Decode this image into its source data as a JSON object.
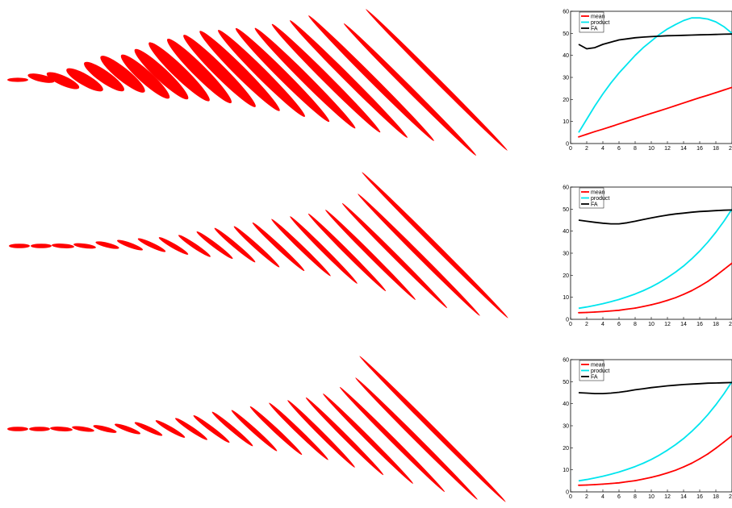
{
  "ellipse_color": "#ff0000",
  "glyph_panels": [
    {
      "count": 20,
      "rows": [
        {
          "cx": 22,
          "cy": 99,
          "rx": 13,
          "ry": 2.6,
          "angle": 0
        },
        {
          "cx": 51,
          "cy": 97,
          "rx": 17,
          "ry": 4.5,
          "angle": 13
        },
        {
          "cx": 78,
          "cy": 100,
          "rx": 22,
          "ry": 6,
          "angle": 24
        },
        {
          "cx": 105,
          "cy": 99,
          "rx": 26,
          "ry": 7,
          "angle": 30
        },
        {
          "cx": 129,
          "cy": 95,
          "rx": 30,
          "ry": 7.5,
          "angle": 35
        },
        {
          "cx": 152,
          "cy": 92,
          "rx": 35,
          "ry": 8,
          "angle": 39
        },
        {
          "cx": 180,
          "cy": 95,
          "rx": 40,
          "ry": 8,
          "angle": 42
        },
        {
          "cx": 200,
          "cy": 92,
          "rx": 45,
          "ry": 8,
          "angle": 43
        },
        {
          "cx": 222,
          "cy": 89,
          "rx": 52,
          "ry": 8,
          "angle": 44
        },
        {
          "cx": 247,
          "cy": 88,
          "rx": 56,
          "ry": 8,
          "angle": 45
        },
        {
          "cx": 272,
          "cy": 88,
          "rx": 63,
          "ry": 7.5,
          "angle": 45
        },
        {
          "cx": 297,
          "cy": 88,
          "rx": 70,
          "ry": 7,
          "angle": 45
        },
        {
          "cx": 324,
          "cy": 91,
          "rx": 76,
          "ry": 6.5,
          "angle": 45
        },
        {
          "cx": 350,
          "cy": 93,
          "rx": 82,
          "ry": 6,
          "angle": 45
        },
        {
          "cx": 378,
          "cy": 97,
          "rx": 88,
          "ry": 5.5,
          "angle": 45
        },
        {
          "cx": 404,
          "cy": 97,
          "rx": 95,
          "ry": 5,
          "angle": 45
        },
        {
          "cx": 432,
          "cy": 98,
          "rx": 103,
          "ry": 4.5,
          "angle": 45
        },
        {
          "cx": 460,
          "cy": 97,
          "rx": 110,
          "ry": 4,
          "angle": 45
        },
        {
          "cx": 508,
          "cy": 111,
          "rx": 116,
          "ry": 3.5,
          "angle": 45
        },
        {
          "cx": 541,
          "cy": 99,
          "rx": 124,
          "ry": 3,
          "angle": 45
        }
      ]
    },
    {
      "count": 20,
      "rows": [
        {
          "cx": 24,
          "cy": 305,
          "rx": 13,
          "ry": 2.8,
          "angle": 0
        },
        {
          "cx": 51,
          "cy": 305,
          "rx": 13,
          "ry": 2.8,
          "angle": 0
        },
        {
          "cx": 78,
          "cy": 305,
          "rx": 14,
          "ry": 2.8,
          "angle": 4
        },
        {
          "cx": 105,
          "cy": 305,
          "rx": 14,
          "ry": 2.8,
          "angle": 8
        },
        {
          "cx": 133,
          "cy": 304,
          "rx": 15,
          "ry": 3,
          "angle": 14
        },
        {
          "cx": 161,
          "cy": 304,
          "rx": 17,
          "ry": 3,
          "angle": 20
        },
        {
          "cx": 188,
          "cy": 304,
          "rx": 19,
          "ry": 3,
          "angle": 25
        },
        {
          "cx": 215,
          "cy": 305,
          "rx": 21,
          "ry": 3,
          "angle": 30
        },
        {
          "cx": 241,
          "cy": 305,
          "rx": 24,
          "ry": 3,
          "angle": 34
        },
        {
          "cx": 266,
          "cy": 304,
          "rx": 28,
          "ry": 3,
          "angle": 37
        },
        {
          "cx": 291,
          "cy": 304,
          "rx": 33,
          "ry": 3,
          "angle": 40
        },
        {
          "cx": 318,
          "cy": 306,
          "rx": 38,
          "ry": 3,
          "angle": 42
        },
        {
          "cx": 345,
          "cy": 306,
          "rx": 44,
          "ry": 3,
          "angle": 43
        },
        {
          "cx": 373,
          "cy": 307,
          "rx": 51,
          "ry": 3,
          "angle": 44
        },
        {
          "cx": 401,
          "cy": 310,
          "rx": 59,
          "ry": 3,
          "angle": 45
        },
        {
          "cx": 430,
          "cy": 313,
          "rx": 68,
          "ry": 3,
          "angle": 45
        },
        {
          "cx": 459,
          "cy": 316,
          "rx": 79,
          "ry": 3,
          "angle": 45
        },
        {
          "cx": 489,
          "cy": 317,
          "rx": 92,
          "ry": 3,
          "angle": 45
        },
        {
          "cx": 519,
          "cy": 316,
          "rx": 107,
          "ry": 3,
          "angle": 45
        },
        {
          "cx": 539,
          "cy": 304,
          "rx": 128,
          "ry": 3,
          "angle": 45
        }
      ]
    },
    {
      "count": 20,
      "rows": [
        {
          "cx": 22,
          "cy": 532,
          "rx": 13,
          "ry": 2.8,
          "angle": 0
        },
        {
          "cx": 49,
          "cy": 532,
          "rx": 13,
          "ry": 2.8,
          "angle": 0
        },
        {
          "cx": 76,
          "cy": 532,
          "rx": 14,
          "ry": 2.8,
          "angle": 4
        },
        {
          "cx": 103,
          "cy": 532,
          "rx": 14,
          "ry": 2.8,
          "angle": 9
        },
        {
          "cx": 130,
          "cy": 532,
          "rx": 15,
          "ry": 3,
          "angle": 15
        },
        {
          "cx": 158,
          "cy": 532,
          "rx": 17,
          "ry": 3,
          "angle": 20
        },
        {
          "cx": 184,
          "cy": 532,
          "rx": 19,
          "ry": 3,
          "angle": 25
        },
        {
          "cx": 211,
          "cy": 532,
          "rx": 21,
          "ry": 3,
          "angle": 30
        },
        {
          "cx": 237,
          "cy": 532,
          "rx": 24,
          "ry": 3,
          "angle": 34
        },
        {
          "cx": 262,
          "cy": 532,
          "rx": 28,
          "ry": 3,
          "angle": 37
        },
        {
          "cx": 288,
          "cy": 532,
          "rx": 33,
          "ry": 3,
          "angle": 40
        },
        {
          "cx": 315,
          "cy": 534,
          "rx": 38,
          "ry": 3,
          "angle": 42
        },
        {
          "cx": 342,
          "cy": 534,
          "rx": 44,
          "ry": 3,
          "angle": 43
        },
        {
          "cx": 370,
          "cy": 535,
          "rx": 51,
          "ry": 3,
          "angle": 44
        },
        {
          "cx": 398,
          "cy": 538,
          "rx": 59,
          "ry": 3,
          "angle": 45
        },
        {
          "cx": 427,
          "cy": 541,
          "rx": 68,
          "ry": 3,
          "angle": 45
        },
        {
          "cx": 456,
          "cy": 544,
          "rx": 79,
          "ry": 3,
          "angle": 45
        },
        {
          "cx": 486,
          "cy": 545,
          "rx": 92,
          "ry": 3,
          "angle": 45
        },
        {
          "cx": 516,
          "cy": 544,
          "rx": 107,
          "ry": 3,
          "angle": 45
        },
        {
          "cx": 536,
          "cy": 532,
          "rx": 128,
          "ry": 3,
          "angle": 45
        }
      ]
    }
  ],
  "chart_data": [
    {
      "type": "line",
      "title": "",
      "xlabel": "",
      "ylabel": "",
      "xlim": [
        0,
        20
      ],
      "ylim": [
        0,
        60
      ],
      "xticks": [
        "0",
        "2",
        "4",
        "6",
        "8",
        "10",
        "12",
        "14",
        "16",
        "18",
        "2"
      ],
      "yticks": [
        "0",
        "10",
        "20",
        "30",
        "40",
        "50",
        "60"
      ],
      "grid": false,
      "legend_position": "top-left",
      "series": [
        {
          "name": "mean",
          "color": "#ff0000",
          "markers": true,
          "x": [
            1,
            2,
            3,
            4,
            5,
            6,
            7,
            8,
            9,
            10,
            11,
            12,
            13,
            14,
            15,
            16,
            17,
            18,
            19,
            20
          ],
          "y": [
            3,
            4.2,
            5.4,
            6.5,
            7.7,
            8.9,
            10.1,
            11.3,
            12.5,
            13.7,
            14.8,
            16,
            17.2,
            18.4,
            19.6,
            20.8,
            21.9,
            23.1,
            24.3,
            25.5
          ]
        },
        {
          "name": "product",
          "color": "#00e5ee",
          "markers": false,
          "x": [
            1,
            2,
            3,
            4,
            5,
            6,
            7,
            8,
            9,
            10,
            11,
            12,
            13,
            14,
            15,
            16,
            17,
            18,
            19,
            20
          ],
          "y": [
            5,
            11,
            17,
            22.5,
            27.5,
            32,
            36,
            40,
            43.5,
            46.5,
            49.5,
            52,
            54,
            55.8,
            57,
            57,
            56.5,
            55.2,
            53,
            50
          ]
        },
        {
          "name": "FA",
          "color": "#000000",
          "markers": false,
          "x": [
            1,
            2,
            3,
            4,
            5,
            6,
            7,
            8,
            9,
            10,
            11,
            12,
            13,
            14,
            15,
            16,
            17,
            18,
            19,
            20
          ],
          "y": [
            45,
            43,
            43.5,
            45,
            46,
            47,
            47.5,
            48,
            48.3,
            48.5,
            48.7,
            48.9,
            49,
            49.1,
            49.2,
            49.3,
            49.4,
            49.5,
            49.6,
            49.7
          ]
        }
      ]
    },
    {
      "type": "line",
      "title": "",
      "xlabel": "",
      "ylabel": "",
      "xlim": [
        0,
        20
      ],
      "ylim": [
        0,
        60
      ],
      "xticks": [
        "0",
        "2",
        "4",
        "6",
        "8",
        "10",
        "12",
        "14",
        "16",
        "18",
        "2"
      ],
      "yticks": [
        "0",
        "10",
        "20",
        "30",
        "40",
        "50",
        "60"
      ],
      "grid": false,
      "legend_position": "top-left",
      "series": [
        {
          "name": "mean",
          "color": "#ff0000",
          "markers": true,
          "x": [
            1,
            2,
            3,
            4,
            5,
            6,
            7,
            8,
            9,
            10,
            11,
            12,
            13,
            14,
            15,
            16,
            17,
            18,
            19,
            20
          ],
          "y": [
            3,
            3.1,
            3.3,
            3.5,
            3.8,
            4.1,
            4.6,
            5.1,
            5.8,
            6.6,
            7.5,
            8.6,
            9.8,
            11.3,
            13,
            15,
            17.2,
            19.8,
            22.6,
            25.5
          ]
        },
        {
          "name": "product",
          "color": "#00e5ee",
          "markers": false,
          "x": [
            1,
            2,
            3,
            4,
            5,
            6,
            7,
            8,
            9,
            10,
            11,
            12,
            13,
            14,
            15,
            16,
            17,
            18,
            19,
            20
          ],
          "y": [
            5,
            5.6,
            6.3,
            7.1,
            8,
            9,
            10.2,
            11.5,
            13,
            14.7,
            16.7,
            18.9,
            21.4,
            24.2,
            27.4,
            31,
            35,
            39.5,
            44.5,
            50
          ]
        },
        {
          "name": "FA",
          "color": "#000000",
          "markers": false,
          "x": [
            1,
            2,
            3,
            4,
            5,
            6,
            7,
            8,
            9,
            10,
            11,
            12,
            13,
            14,
            15,
            16,
            17,
            18,
            19,
            20
          ],
          "y": [
            45,
            44.5,
            44,
            43.6,
            43.3,
            43.3,
            43.8,
            44.5,
            45.3,
            46,
            46.7,
            47.3,
            47.8,
            48.2,
            48.6,
            48.9,
            49.1,
            49.3,
            49.5,
            49.6
          ]
        }
      ]
    },
    {
      "type": "line",
      "title": "",
      "xlabel": "",
      "ylabel": "",
      "xlim": [
        0,
        20
      ],
      "ylim": [
        0,
        60
      ],
      "xticks": [
        "0",
        "2",
        "4",
        "6",
        "8",
        "10",
        "12",
        "14",
        "16",
        "18",
        "2"
      ],
      "yticks": [
        "0",
        "10",
        "20",
        "30",
        "40",
        "50",
        "60"
      ],
      "grid": false,
      "legend_position": "top-left",
      "series": [
        {
          "name": "mean",
          "color": "#ff0000",
          "markers": true,
          "x": [
            1,
            2,
            3,
            4,
            5,
            6,
            7,
            8,
            9,
            10,
            11,
            12,
            13,
            14,
            15,
            16,
            17,
            18,
            19,
            20
          ],
          "y": [
            3,
            3.1,
            3.3,
            3.5,
            3.8,
            4.1,
            4.6,
            5.1,
            5.8,
            6.6,
            7.5,
            8.6,
            9.8,
            11.3,
            13,
            15,
            17.2,
            19.8,
            22.6,
            25.5
          ]
        },
        {
          "name": "product",
          "color": "#00e5ee",
          "markers": false,
          "x": [
            1,
            2,
            3,
            4,
            5,
            6,
            7,
            8,
            9,
            10,
            11,
            12,
            13,
            14,
            15,
            16,
            17,
            18,
            19,
            20
          ],
          "y": [
            5,
            5.6,
            6.3,
            7.1,
            8,
            9,
            10.2,
            11.5,
            13,
            14.7,
            16.7,
            18.9,
            21.4,
            24.2,
            27.4,
            31,
            35,
            39.5,
            44.5,
            50
          ]
        },
        {
          "name": "FA",
          "color": "#000000",
          "markers": false,
          "x": [
            1,
            2,
            3,
            4,
            5,
            6,
            7,
            8,
            9,
            10,
            11,
            12,
            13,
            14,
            15,
            16,
            17,
            18,
            19,
            20
          ],
          "y": [
            45,
            44.8,
            44.6,
            44.6,
            44.8,
            45.2,
            45.7,
            46.3,
            46.8,
            47.3,
            47.7,
            48.1,
            48.4,
            48.7,
            48.9,
            49.1,
            49.3,
            49.4,
            49.5,
            49.6
          ]
        }
      ]
    }
  ]
}
